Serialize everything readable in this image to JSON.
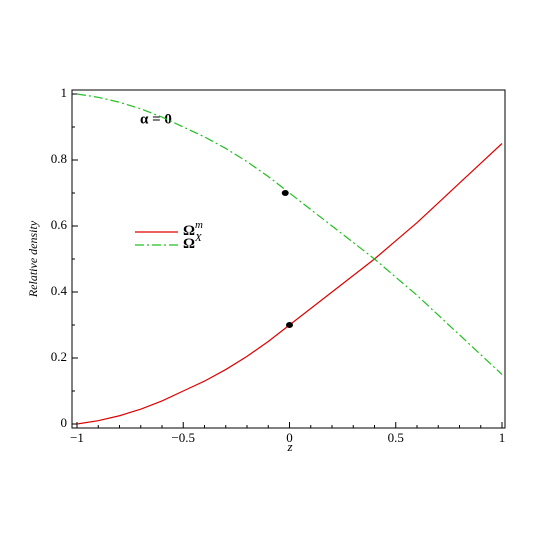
{
  "chart_data": {
    "type": "line",
    "xlabel": "z",
    "ylabel": "Relative density",
    "annotation": "α = 0",
    "x": [
      -1,
      -0.9,
      -0.8,
      -0.7,
      -0.6,
      -0.5,
      -0.4,
      -0.3,
      -0.2,
      -0.1,
      0,
      0.1,
      0.2,
      0.3,
      0.4,
      0.5,
      0.6,
      0.7,
      0.8,
      0.9,
      1
    ],
    "series": [
      {
        "name": "Ω",
        "superscript": "m",
        "color": "#e00000",
        "dash": "solid",
        "values": [
          0,
          0.01,
          0.025,
          0.045,
          0.07,
          0.1,
          0.13,
          0.165,
          0.205,
          0.25,
          0.3,
          0.35,
          0.4,
          0.45,
          0.5,
          0.555,
          0.61,
          0.67,
          0.73,
          0.79,
          0.85
        ]
      },
      {
        "name": "Ω",
        "superscript": "X",
        "color": "#22c022",
        "dash": "dashdot",
        "values": [
          1,
          0.99,
          0.975,
          0.955,
          0.93,
          0.9,
          0.87,
          0.835,
          0.795,
          0.75,
          0.7,
          0.65,
          0.6,
          0.55,
          0.5,
          0.445,
          0.39,
          0.33,
          0.27,
          0.21,
          0.15
        ]
      }
    ],
    "markers": {
      "x": [
        0,
        -0.02
      ],
      "values": [
        0.3,
        0.7
      ],
      "color": "#000000"
    },
    "xlim": [
      -1,
      1
    ],
    "ylim": [
      0,
      1
    ],
    "xticks": [
      {
        "value": -1,
        "label": "−1"
      },
      {
        "value": -0.5,
        "label": "−0.5"
      },
      0,
      0.5,
      1
    ],
    "yticks": [
      0,
      0.2,
      0.4,
      0.6,
      0.8,
      1
    ],
    "xminor": [
      -0.9,
      -0.8,
      -0.7,
      -0.6,
      -0.4,
      -0.3,
      -0.2,
      -0.1,
      0.1,
      0.2,
      0.3,
      0.4,
      0.6,
      0.7,
      0.8,
      0.9
    ],
    "yminor": [
      0.1,
      0.3,
      0.5,
      0.7,
      0.9
    ]
  }
}
